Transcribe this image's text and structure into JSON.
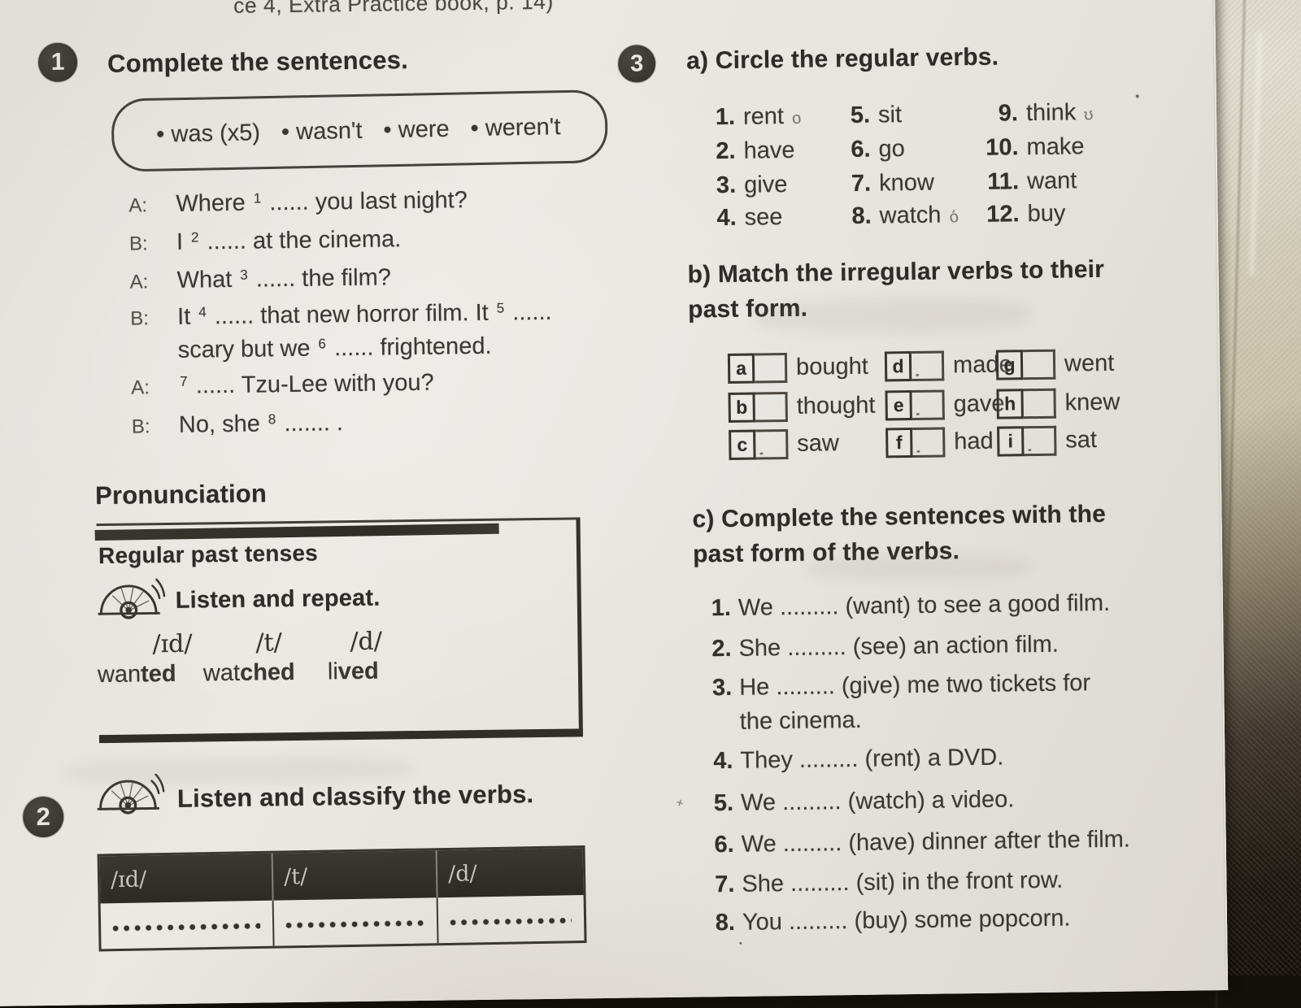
{
  "photo": {
    "header_note": "ce 4, Extra Practice book, p. 14)"
  },
  "exercise1": {
    "number": "1",
    "title": "Complete the sentences.",
    "word_bank": [
      "• was (x5)",
      "• wasn't",
      "• were",
      "• weren't"
    ],
    "dialog": [
      {
        "speaker": "A:",
        "segments": [
          {
            "t": "Where "
          },
          {
            "sup": "1"
          },
          {
            "t": " ...... you last night?"
          }
        ]
      },
      {
        "speaker": "B:",
        "segments": [
          {
            "t": "I "
          },
          {
            "sup": "2"
          },
          {
            "t": " ...... at the cinema."
          }
        ]
      },
      {
        "speaker": "A:",
        "segments": [
          {
            "t": "What "
          },
          {
            "sup": "3"
          },
          {
            "t": " ...... the film?"
          }
        ]
      },
      {
        "speaker": "B:",
        "segments": [
          {
            "t": "It "
          },
          {
            "sup": "4"
          },
          {
            "t": " ...... that new horror film. It "
          },
          {
            "sup": "5"
          },
          {
            "t": " ......"
          }
        ]
      },
      {
        "speaker": "",
        "segments": [
          {
            "t": "scary but we "
          },
          {
            "sup": "6"
          },
          {
            "t": " ...... frightened."
          }
        ]
      },
      {
        "speaker": "A:",
        "segments": [
          {
            "sup": "7"
          },
          {
            "t": " ...... Tzu-Lee with you?"
          }
        ]
      },
      {
        "speaker": "B:",
        "segments": [
          {
            "t": "No, she "
          },
          {
            "sup": "8"
          },
          {
            "t": " ....... ."
          }
        ]
      }
    ]
  },
  "pronunciation": {
    "title": "Pronunciation",
    "subtitle": "Regular past tenses",
    "icon": "cd-listen-icon",
    "instruction": "Listen and repeat.",
    "phonemes": [
      {
        "ipa": "/ɪd/",
        "word_start": "wan",
        "word_end": "ted"
      },
      {
        "ipa": "/t/",
        "word_start": "wat",
        "word_end": "ched"
      },
      {
        "ipa": "/d/",
        "word_start": "li",
        "word_end": "ved"
      }
    ]
  },
  "exercise2": {
    "number": "2",
    "icon": "cd-listen-icon",
    "instruction": "Listen and classify the verbs.",
    "table_headers": [
      "/ɪd/",
      "/t/",
      "/d/"
    ]
  },
  "exercise3": {
    "number": "3",
    "part_a": {
      "title": "a) Circle the regular verbs.",
      "columns": [
        {
          "items": [
            {
              "num": "1.",
              "word": "rent",
              "mark": "o"
            },
            {
              "num": "2.",
              "word": "have",
              "mark": ""
            },
            {
              "num": "3.",
              "word": "give",
              "mark": ""
            },
            {
              "num": "4.",
              "word": "see",
              "mark": ""
            }
          ]
        },
        {
          "items": [
            {
              "num": "5.",
              "word": "sit",
              "mark": ""
            },
            {
              "num": "6.",
              "word": "go",
              "mark": ""
            },
            {
              "num": "7.",
              "word": "know",
              "mark": ""
            },
            {
              "num": "8.",
              "word": "watch",
              "mark": "ó"
            }
          ]
        },
        {
          "items": [
            {
              "num": "9.",
              "word": "think",
              "mark": "ʊ"
            },
            {
              "num": "10.",
              "word": "make",
              "mark": ""
            },
            {
              "num": "11.",
              "word": "want",
              "mark": ""
            },
            {
              "num": "12.",
              "word": "buy",
              "mark": ""
            }
          ]
        }
      ]
    },
    "part_b": {
      "title_line1": "b) Match the irregular verbs to their",
      "title_line2": "past form.",
      "items": [
        {
          "letter": "a",
          "word": "bought"
        },
        {
          "letter": "d",
          "word": "made"
        },
        {
          "letter": "g",
          "word": "went"
        },
        {
          "letter": "b",
          "word": "thought"
        },
        {
          "letter": "e",
          "word": "gave"
        },
        {
          "letter": "h",
          "word": "knew"
        },
        {
          "letter": "c",
          "word": "saw"
        },
        {
          "letter": "f",
          "word": "had"
        },
        {
          "letter": "i",
          "word": "sat"
        }
      ]
    },
    "part_c": {
      "title_line1": "c) Complete the sentences with the",
      "title_line2": "past form of the verbs.",
      "sentences": [
        {
          "num": "1.",
          "text": "We ......... (want) to see a good film.",
          "text2": "",
          "pre_mark": ""
        },
        {
          "num": "2.",
          "text": "She ......... (see) an action film.",
          "text2": "",
          "pre_mark": ""
        },
        {
          "num": "3.",
          "text": "He ......... (give) me two tickets for",
          "text2": "the cinema.",
          "pre_mark": ""
        },
        {
          "num": "4.",
          "text": "They ......... (rent) a DVD.",
          "text2": "",
          "pre_mark": ""
        },
        {
          "num": "5.",
          "text": "We ......... (watch) a video.",
          "text2": "",
          "pre_mark": "+"
        },
        {
          "num": "6.",
          "text": "We ......... (have) dinner after the film.",
          "text2": "",
          "pre_mark": ""
        },
        {
          "num": "7.",
          "text": "She ......... (sit) in the front row.",
          "text2": "",
          "pre_mark": ""
        },
        {
          "num": "8.",
          "text": "You ......... (buy) some popcorn.",
          "text2": "",
          "pre_mark": ""
        }
      ]
    }
  }
}
